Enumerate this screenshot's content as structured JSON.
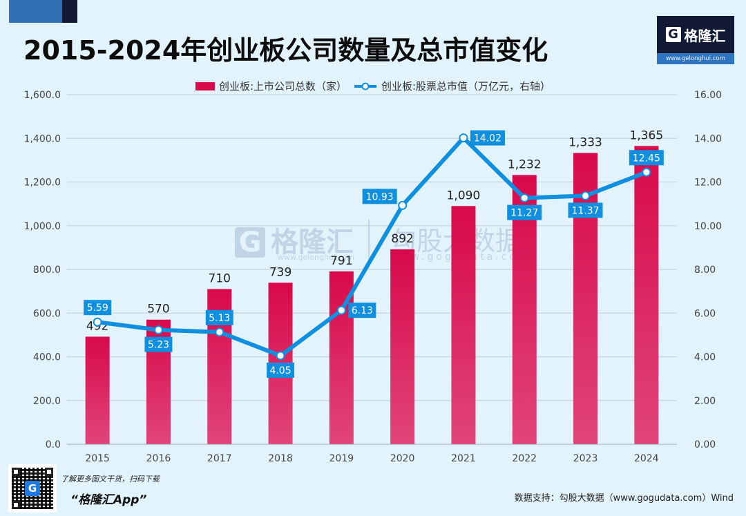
{
  "header": {
    "title": "2015-2024年创业板公司数量及总市值变化"
  },
  "logo": {
    "mark": "G",
    "name": "格隆汇",
    "url": "www.gelonghui.com"
  },
  "watermark": {
    "brand1_mark": "G",
    "brand1_name": "格隆汇",
    "brand1_url": "www.gelonghui.com",
    "brand2_name": "勾股大数据",
    "brand2_url": "www.gogudata.com"
  },
  "footer": {
    "promo_text": "了解更多图文干货，扫码下载",
    "app_name": "“格隆汇App”",
    "qr_mark": "G",
    "source": "数据支持：勾股大数据（www.gogudata.com）Wind"
  },
  "colors": {
    "bar_top": "#d8094a",
    "bar_bottom": "#e0457a",
    "line": "#0e8fe0",
    "label_bg": "#0e8fe0",
    "background": "#e3f3fc"
  },
  "chart_data": {
    "type": "bar+line",
    "title": "2015-2024年创业板公司数量及总市值变化",
    "categories": [
      "2015",
      "2016",
      "2017",
      "2018",
      "2019",
      "2020",
      "2021",
      "2022",
      "2023",
      "2024"
    ],
    "series": [
      {
        "name": "创业板:上市公司总数（家）",
        "type": "bar",
        "axis": "left",
        "values": [
          492,
          570,
          710,
          739,
          791,
          892,
          1090,
          1232,
          1333,
          1365
        ],
        "labels": [
          "492",
          "570",
          "710",
          "739",
          "791",
          "892",
          "1,090",
          "1,232",
          "1,333",
          "1,365"
        ]
      },
      {
        "name": "创业板:股票总市值（万亿元，右轴）",
        "type": "line",
        "axis": "right",
        "values": [
          5.59,
          5.23,
          5.13,
          4.05,
          6.13,
          10.93,
          14.02,
          11.27,
          11.37,
          12.45
        ],
        "labels": [
          "5.59",
          "5.23",
          "5.13",
          "4.05",
          "6.13",
          "10.93",
          "14.02",
          "11.27",
          "11.37",
          "12.45"
        ],
        "label_positions": [
          "above",
          "below",
          "above",
          "below",
          "right",
          "left",
          "right",
          "below",
          "below",
          "above"
        ]
      }
    ],
    "y_left": {
      "range": [
        0,
        1600
      ],
      "ticks": [
        "0.0",
        "200.0",
        "400.0",
        "600.0",
        "800.0",
        "1,000.0",
        "1,200.0",
        "1,400.0",
        "1,600.0"
      ]
    },
    "y_right": {
      "range": [
        0,
        16
      ],
      "ticks": [
        "0.00",
        "2.00",
        "4.00",
        "6.00",
        "8.00",
        "10.00",
        "12.00",
        "14.00",
        "16.00"
      ]
    },
    "xlabel": "",
    "ylabel": "",
    "grid": true,
    "legend": "top-center"
  }
}
